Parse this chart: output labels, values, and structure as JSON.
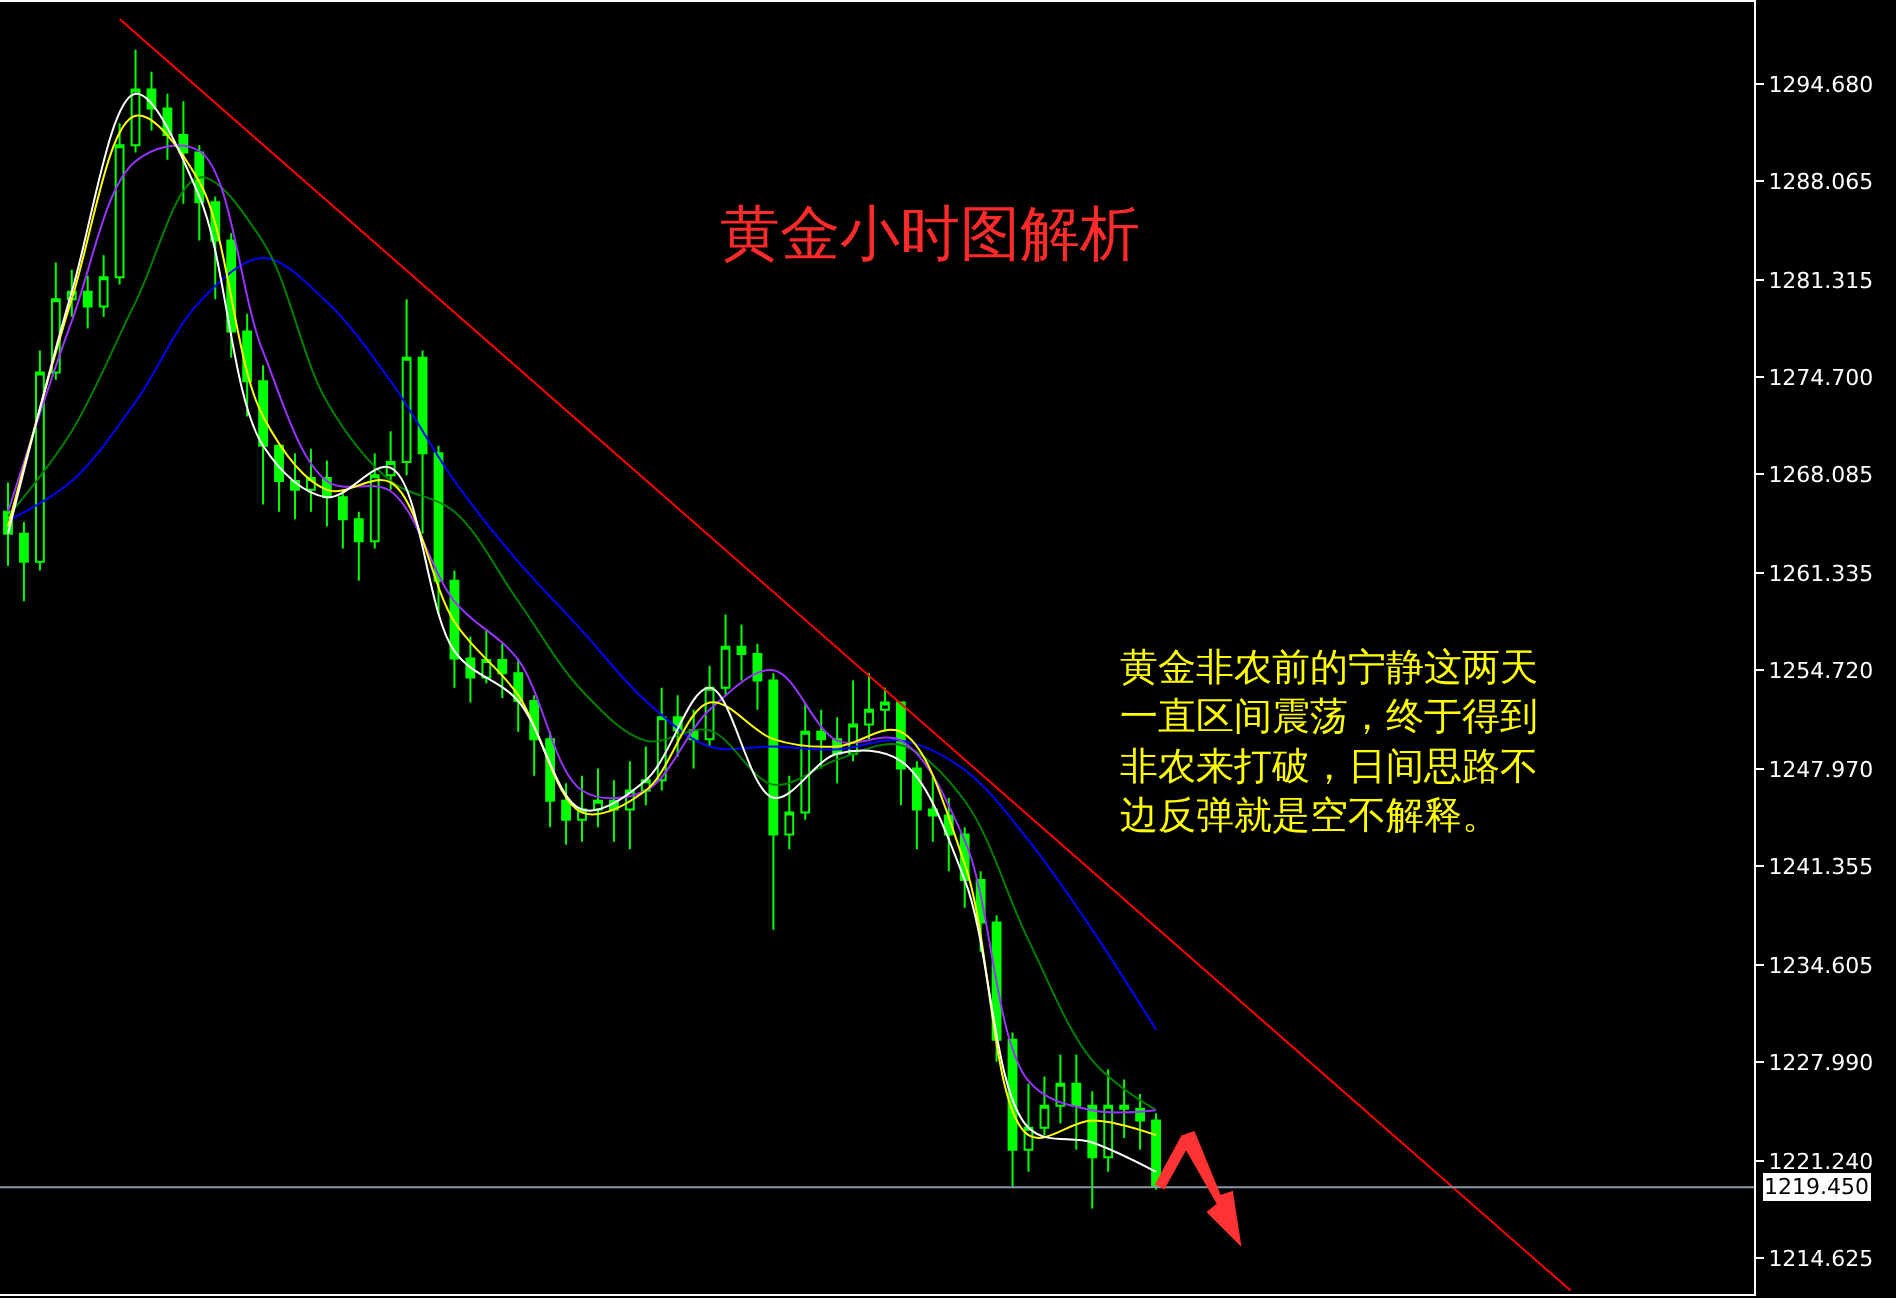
{
  "chart_data": {
    "type": "candlestick",
    "title": "黄金小时图解析",
    "annotations": [
      "黄金非农前的宁静这两天一直区间震荡，终于得到非农来打破，日间思路不边反弹就是空不解释。"
    ],
    "categories": [
      null,
      null,
      null,
      null,
      null,
      null,
      null,
      null,
      null,
      null,
      null,
      null,
      null,
      null,
      null,
      null,
      null,
      null,
      null,
      null,
      null,
      null,
      null,
      null,
      null,
      null,
      null,
      null,
      null,
      null,
      null,
      null,
      null,
      null,
      null,
      null,
      null,
      null,
      null,
      null,
      null,
      null,
      null,
      null,
      null,
      null,
      null,
      null,
      null,
      null,
      null,
      null,
      null,
      null,
      null,
      null,
      null,
      null,
      null,
      null,
      null,
      null,
      null,
      null,
      null,
      null,
      null,
      null,
      null,
      null,
      null,
      null,
      null,
      null,
      null,
      null,
      null,
      null,
      null,
      null,
      null,
      null,
      null,
      null,
      null,
      null,
      null,
      null,
      null,
      null,
      null,
      null,
      null,
      null,
      null,
      null,
      null,
      null,
      null,
      null,
      null,
      null,
      null,
      null,
      null,
      null,
      null,
      null,
      null,
      null
    ],
    "color": "#00ff00",
    "ohlc": [
      [
        1265.5,
        1267.5,
        1261.8,
        1264.0
      ],
      [
        1264.0,
        1264.8,
        1259.4,
        1262.1
      ],
      [
        1262.1,
        1276.5,
        1261.5,
        1275.0
      ],
      [
        1275.0,
        1282.5,
        1274.5,
        1280.0
      ],
      [
        1280.0,
        1282.0,
        1278.8,
        1280.5
      ],
      [
        1280.5,
        1281.6,
        1278.0,
        1279.5
      ],
      [
        1279.5,
        1283.0,
        1278.8,
        1281.5
      ],
      [
        1281.5,
        1292.0,
        1281.0,
        1290.5
      ],
      [
        1290.5,
        1297.0,
        1290.0,
        1294.3
      ],
      [
        1294.3,
        1295.5,
        1291.5,
        1293.0
      ],
      [
        1293.0,
        1294.0,
        1289.5,
        1291.2
      ],
      [
        1291.2,
        1293.5,
        1286.5,
        1290.0
      ],
      [
        1290.0,
        1290.5,
        1284.0,
        1286.6
      ],
      [
        1286.6,
        1287.0,
        1280.0,
        1284.0
      ],
      [
        1284.0,
        1284.5,
        1276.0,
        1277.8
      ],
      [
        1277.8,
        1279.0,
        1272.0,
        1274.4
      ],
      [
        1274.4,
        1275.5,
        1266.0,
        1270.0
      ],
      [
        1270.0,
        1270.0,
        1265.5,
        1267.6
      ],
      [
        1267.6,
        1269.5,
        1265.0,
        1267.0
      ],
      [
        1267.0,
        1269.8,
        1265.5,
        1267.8
      ],
      [
        1267.8,
        1269.0,
        1264.5,
        1266.5
      ],
      [
        1266.5,
        1267.0,
        1263.0,
        1265.0
      ],
      [
        1265.0,
        1265.5,
        1260.8,
        1263.5
      ],
      [
        1263.5,
        1269.5,
        1263.0,
        1268.0
      ],
      [
        1268.0,
        1271.0,
        1267.0,
        1268.9
      ],
      [
        1268.9,
        1280.0,
        1268.0,
        1276.0
      ],
      [
        1276.0,
        1276.5,
        1264.0,
        1269.5
      ],
      [
        1269.5,
        1270.0,
        1258.5,
        1260.8
      ],
      [
        1260.8,
        1261.5,
        1253.5,
        1255.5
      ],
      [
        1255.5,
        1257.0,
        1252.5,
        1254.2
      ],
      [
        1254.2,
        1257.5,
        1253.8,
        1255.4
      ],
      [
        1255.4,
        1256.5,
        1252.8,
        1254.5
      ],
      [
        1254.5,
        1255.5,
        1250.5,
        1252.6
      ],
      [
        1252.6,
        1253.0,
        1247.5,
        1250.0
      ],
      [
        1250.0,
        1250.5,
        1244.0,
        1245.8
      ],
      [
        1245.8,
        1247.0,
        1242.8,
        1244.5
      ],
      [
        1244.5,
        1247.5,
        1243.0,
        1245.2
      ],
      [
        1245.2,
        1248.0,
        1244.0,
        1245.8
      ],
      [
        1245.8,
        1247.2,
        1243.0,
        1245.2
      ],
      [
        1245.2,
        1248.5,
        1242.5,
        1246.5
      ],
      [
        1246.5,
        1249.5,
        1245.5,
        1247.2
      ],
      [
        1247.2,
        1253.5,
        1246.5,
        1251.5
      ],
      [
        1251.5,
        1253.0,
        1248.8,
        1250.6
      ],
      [
        1250.6,
        1252.0,
        1248.0,
        1250.0
      ],
      [
        1250.0,
        1255.0,
        1249.5,
        1253.5
      ],
      [
        1253.5,
        1258.5,
        1253.0,
        1256.3
      ],
      [
        1256.3,
        1257.8,
        1254.0,
        1255.8
      ],
      [
        1255.8,
        1256.5,
        1252.0,
        1254.0
      ],
      [
        1254.0,
        1254.5,
        1237.0,
        1243.5
      ],
      [
        1243.5,
        1247.5,
        1242.5,
        1245.0
      ],
      [
        1245.0,
        1252.5,
        1244.5,
        1250.5
      ],
      [
        1250.5,
        1252.0,
        1248.0,
        1250.0
      ],
      [
        1250.0,
        1251.5,
        1247.0,
        1249.0
      ],
      [
        1249.0,
        1254.0,
        1248.5,
        1251.0
      ],
      [
        1251.0,
        1254.5,
        1250.0,
        1252.0
      ],
      [
        1252.0,
        1253.5,
        1250.5,
        1252.5
      ],
      [
        1252.5,
        1252.5,
        1245.5,
        1248.0
      ],
      [
        1248.0,
        1248.5,
        1242.5,
        1245.2
      ],
      [
        1245.2,
        1247.5,
        1243.0,
        1244.8
      ],
      [
        1244.8,
        1246.0,
        1241.0,
        1243.5
      ],
      [
        1243.5,
        1244.0,
        1238.5,
        1240.4
      ],
      [
        1240.4,
        1241.0,
        1235.5,
        1237.5
      ],
      [
        1237.5,
        1238.0,
        1228.0,
        1229.5
      ],
      [
        1229.5,
        1230.0,
        1219.5,
        1222.0
      ],
      [
        1222.0,
        1226.5,
        1220.5,
        1223.5
      ],
      [
        1223.5,
        1227.0,
        1223.0,
        1225.0
      ],
      [
        1225.0,
        1228.5,
        1223.8,
        1226.5
      ],
      [
        1226.5,
        1228.5,
        1222.0,
        1225.0
      ],
      [
        1225.0,
        1226.0,
        1218.0,
        1221.5
      ],
      [
        1221.5,
        1227.5,
        1220.5,
        1225.0
      ],
      [
        1225.0,
        1226.8,
        1222.8,
        1224.8
      ],
      [
        1224.8,
        1225.8,
        1222.0,
        1224.0
      ],
      [
        1224.0,
        1224.5,
        1219.3,
        1219.5
      ],
      null,
      null,
      null,
      null,
      null,
      null,
      null,
      null,
      null,
      null,
      null,
      null,
      null,
      null,
      null,
      null,
      null,
      null,
      null,
      null,
      null,
      null,
      null,
      null,
      null,
      null,
      null,
      null,
      null,
      null,
      null,
      null,
      null,
      null,
      null,
      null,
      null
    ],
    "series": [
      {
        "type": "line",
        "color": "#0000ff",
        "values": [
          1264.9,
          null,
          null,
          null,
          1267.6,
          null,
          null,
          null,
          1273.0,
          null,
          null,
          null,
          1279.8,
          null,
          null,
          null,
          1282.8,
          null,
          null,
          null,
          1279.8,
          null,
          null,
          null,
          1274.4,
          null,
          null,
          null,
          1267.6,
          null,
          null,
          null,
          1262.1,
          null,
          null,
          null,
          1257.4,
          null,
          null,
          null,
          1252.6,
          null,
          null,
          null,
          1249.5,
          null,
          null,
          null,
          1249.5,
          null,
          null,
          null,
          1249.3,
          null,
          null,
          null,
          1249.9,
          null,
          null,
          null,
          1247.9,
          null,
          null,
          null,
          1243.1,
          null,
          null,
          null,
          1237.0,
          null,
          null,
          null,
          1230.2,
          null,
          null,
          null,
          null,
          null,
          null,
          null,
          null,
          null,
          null,
          null,
          null,
          null,
          null,
          null,
          null,
          null,
          null,
          null,
          null,
          null,
          null,
          null,
          null,
          null,
          null,
          null,
          null,
          null,
          null,
          null,
          null,
          null,
          null,
          null,
          null,
          null
        ]
      },
      {
        "type": "line",
        "color": "#008000",
        "values": [
          1265.2,
          null,
          null,
          null,
          1271.0,
          null,
          null,
          null,
          1279.8,
          null,
          null,
          null,
          1288.3,
          null,
          null,
          null,
          1283.9,
          null,
          null,
          null,
          1273.0,
          null,
          null,
          null,
          1267.6,
          null,
          null,
          null,
          1265.5,
          null,
          null,
          null,
          1259.4,
          null,
          null,
          null,
          1253.3,
          null,
          null,
          null,
          1249.9,
          null,
          null,
          null,
          1250.6,
          null,
          null,
          null,
          1246.9,
          null,
          null,
          null,
          1248.6,
          null,
          null,
          null,
          1249.6,
          null,
          null,
          null,
          1245.8,
          null,
          null,
          null,
          1236.3,
          null,
          null,
          null,
          1228.1,
          null,
          null,
          null,
          1224.7,
          null,
          null,
          null,
          null,
          null,
          null,
          null,
          null,
          null,
          null,
          null,
          null,
          null,
          null,
          null,
          null,
          null,
          null,
          null,
          null,
          null,
          null,
          null,
          null,
          null,
          null,
          null,
          null,
          null,
          null,
          null,
          null,
          null,
          null,
          null,
          null,
          null
        ]
      },
      {
        "type": "line",
        "color": "#9933ff",
        "values": [
          1265.5,
          null,
          null,
          null,
          1278.5,
          null,
          null,
          null,
          1289.4,
          null,
          null,
          null,
          1290.1,
          null,
          null,
          null,
          1276.4,
          null,
          null,
          null,
          1267.6,
          null,
          null,
          null,
          1266.9,
          null,
          null,
          null,
          1259.4,
          null,
          null,
          null,
          1255.4,
          null,
          null,
          null,
          1246.5,
          null,
          null,
          null,
          1246.5,
          null,
          null,
          null,
          1252.0,
          null,
          null,
          null,
          1254.7,
          null,
          null,
          null,
          1249.9,
          null,
          null,
          null,
          1249.9,
          null,
          null,
          null,
          1243.1,
          null,
          null,
          null,
          1226.7,
          null,
          null,
          null,
          1224.7,
          null,
          null,
          null,
          1224.7,
          null,
          null,
          null,
          null,
          null,
          null,
          null,
          null,
          null,
          null,
          null,
          null,
          null,
          null,
          null,
          null,
          null,
          null,
          null,
          null,
          null,
          null,
          null,
          null,
          null,
          null,
          null,
          null,
          null,
          null,
          null,
          null,
          null,
          null,
          null,
          null,
          null
        ]
      },
      {
        "type": "line",
        "color": "#ffff00",
        "values": [
          1264.5,
          null,
          null,
          null,
          1280.0,
          null,
          null,
          null,
          1292.5,
          null,
          null,
          null,
          1288.0,
          null,
          null,
          null,
          1272.0,
          null,
          null,
          null,
          1267.0,
          null,
          null,
          null,
          1267.5,
          null,
          null,
          null,
          1258.0,
          null,
          null,
          null,
          1253.0,
          null,
          null,
          null,
          1245.0,
          null,
          null,
          null,
          1246.5,
          null,
          null,
          null,
          1252.5,
          null,
          null,
          null,
          1250.0,
          null,
          null,
          null,
          1249.5,
          null,
          null,
          null,
          1250.5,
          null,
          null,
          null,
          1241.5,
          null,
          null,
          null,
          1223.0,
          null,
          null,
          null,
          1224.0,
          null,
          null,
          null,
          1223.0,
          null,
          null,
          null,
          null,
          null,
          null,
          null,
          null,
          null,
          null,
          null,
          null,
          null,
          null,
          null,
          null,
          null,
          null,
          null,
          null,
          null,
          null,
          null,
          null,
          null,
          null,
          null,
          null,
          null,
          null,
          null,
          null,
          null,
          null,
          null,
          null,
          null
        ]
      },
      {
        "type": "line",
        "color": "#ffffff",
        "values": [
          1264.0,
          null,
          null,
          null,
          1280.5,
          null,
          null,
          null,
          1294.0,
          null,
          null,
          null,
          1287.0,
          null,
          null,
          null,
          1270.0,
          null,
          null,
          null,
          1266.5,
          null,
          null,
          null,
          1268.5,
          null,
          null,
          null,
          1256.0,
          null,
          null,
          null,
          1252.6,
          null,
          null,
          null,
          1245.2,
          null,
          null,
          null,
          1247.2,
          null,
          null,
          null,
          1253.5,
          null,
          null,
          null,
          1246.0,
          null,
          null,
          null,
          1249.0,
          null,
          null,
          null,
          1248.5,
          null,
          null,
          null,
          1240.4,
          null,
          null,
          null,
          1223.5,
          null,
          null,
          null,
          1222.5,
          null,
          null,
          null,
          1220.5,
          null,
          null,
          null,
          null,
          null,
          null,
          null,
          null,
          null,
          null,
          null,
          null,
          null,
          null,
          null,
          null,
          null,
          null,
          null,
          null,
          null,
          null,
          null,
          null,
          null,
          null,
          null,
          null,
          null,
          null,
          null,
          null,
          null,
          null,
          null,
          null,
          null
        ]
      },
      {
        "type": "line",
        "color": "#ff0000",
        "values": [
          null,
          null,
          null,
          null,
          null,
          null,
          null,
          1299.1,
          null,
          null,
          null,
          null,
          null,
          null,
          null,
          null,
          null,
          null,
          null,
          null,
          null,
          null,
          null,
          null,
          null,
          null,
          null,
          null,
          null,
          null,
          null,
          null,
          null,
          null,
          null,
          null,
          null,
          null,
          null,
          null,
          null,
          null,
          null,
          null,
          null,
          null,
          null,
          null,
          null,
          null,
          null,
          null,
          null,
          null,
          null,
          null,
          null,
          null,
          null,
          null,
          null,
          null,
          null,
          null,
          null,
          null,
          null,
          null,
          null,
          null,
          null,
          null,
          null,
          null,
          null,
          null,
          null,
          null,
          null,
          null,
          null,
          null,
          null,
          null,
          null,
          null,
          null,
          null,
          null,
          null,
          null,
          null,
          null,
          null,
          null,
          null,
          null,
          null,
          1212.4,
          null,
          null,
          null,
          null,
          null,
          null,
          null,
          null,
          null,
          null,
          null
        ]
      }
    ],
    "ref_lines": [
      {
        "axis": "y",
        "value": 1219.45,
        "label": "1219.450",
        "color": "#8899aa"
      }
    ],
    "ylim": [
      1212.17,
      1300.26
    ],
    "yticks": [
      {
        "value": 1294.68,
        "label": "1294.680"
      },
      1288.065,
      1281.315,
      {
        "value": 1274.7,
        "label": "1274.700"
      },
      1268.085,
      1261.335,
      {
        "value": 1254.72,
        "label": "1254.720"
      },
      {
        "value": 1247.97,
        "label": "1247.970"
      },
      1241.355,
      1234.605,
      {
        "value": 1227.99,
        "label": "1227.990"
      },
      {
        "value": 1221.24,
        "label": "1221.240"
      },
      1214.625
    ],
    "tick_labels": "y"
  }
}
